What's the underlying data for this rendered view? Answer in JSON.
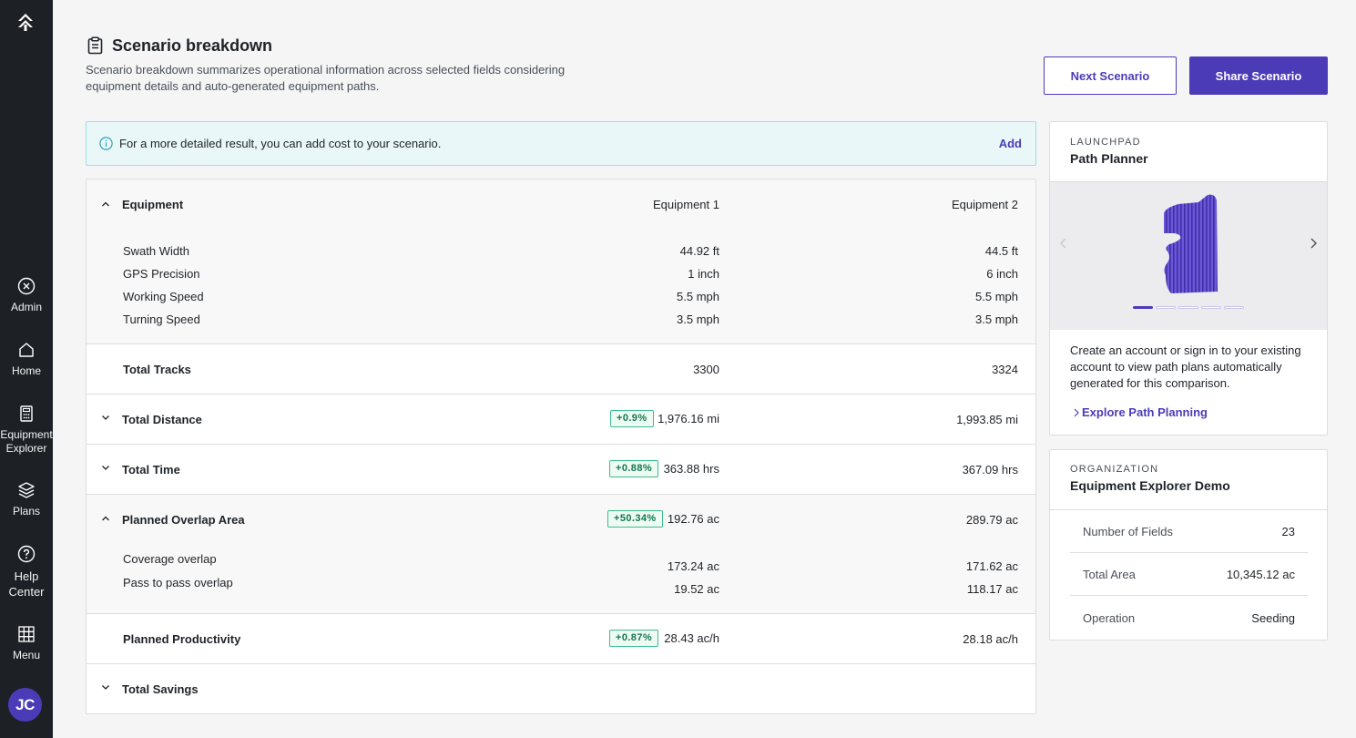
{
  "nav": {
    "items": [
      {
        "label": "Admin"
      },
      {
        "label": "Home"
      },
      {
        "label": "Equipment Explorer"
      },
      {
        "label": "Plans"
      },
      {
        "label": "Help Center"
      },
      {
        "label": "Menu"
      }
    ],
    "avatar_initials": "JC"
  },
  "header": {
    "title": "Scenario breakdown",
    "description": "Scenario breakdown summarizes operational information across selected fields considering equipment details and auto-generated equipment paths.",
    "next_button": "Next Scenario",
    "share_button": "Share Scenario"
  },
  "banner": {
    "text": "For a more detailed result, you can add cost to your scenario.",
    "action": "Add"
  },
  "table": {
    "equipment": {
      "label": "Equipment",
      "col1": "Equipment 1",
      "col2": "Equipment 2",
      "rows": [
        {
          "label": "Swath Width",
          "v1": "44.92 ft",
          "v2": "44.5 ft"
        },
        {
          "label": "GPS Precision",
          "v1": "1 inch",
          "v2": "6 inch"
        },
        {
          "label": "Working Speed",
          "v1": "5.5 mph",
          "v2": "5.5 mph"
        },
        {
          "label": "Turning Speed",
          "v1": "3.5 mph",
          "v2": "3.5 mph"
        }
      ]
    },
    "total_tracks": {
      "label": "Total Tracks",
      "v1": "3300",
      "v2": "3324"
    },
    "total_distance": {
      "label": "Total Distance",
      "badge": "+0.9%",
      "v1": "1,976.16 mi",
      "v2": "1,993.85 mi"
    },
    "total_time": {
      "label": "Total Time",
      "badge": "+0.88%",
      "v1": "363.88 hrs",
      "v2": "367.09 hrs"
    },
    "overlap": {
      "label": "Planned Overlap Area",
      "badge": "+50.34%",
      "v1": "192.76 ac",
      "v2": "289.79 ac",
      "rows": [
        {
          "label": "Coverage overlap",
          "v1": "173.24 ac",
          "v2": "171.62 ac"
        },
        {
          "label": "Pass to pass overlap",
          "v1": "19.52 ac",
          "v2": "118.17 ac"
        }
      ]
    },
    "productivity": {
      "label": "Planned Productivity",
      "badge": "+0.87%",
      "v1": "28.43 ac/h",
      "v2": "28.18 ac/h"
    },
    "savings": {
      "label": "Total Savings"
    }
  },
  "launchpad": {
    "eyebrow": "LAUNCHPAD",
    "title": "Path Planner",
    "text": "Create an account or sign in to your existing account to view path plans automatically generated for this comparison.",
    "link": "Explore Path Planning",
    "slide_index": 1,
    "slide_count": 5
  },
  "organization": {
    "eyebrow": "ORGANIZATION",
    "title": "Equipment Explorer Demo",
    "rows": [
      {
        "label": "Number of Fields",
        "value": "23"
      },
      {
        "label": "Total Area",
        "value": "10,345.12 ac"
      },
      {
        "label": "Operation",
        "value": "Seeding"
      }
    ]
  },
  "colors": {
    "accent": "#4c3bb7",
    "sidebar": "#1d2126",
    "badge_green": "#3cbf8a",
    "banner_bg": "#e9f7f8"
  }
}
